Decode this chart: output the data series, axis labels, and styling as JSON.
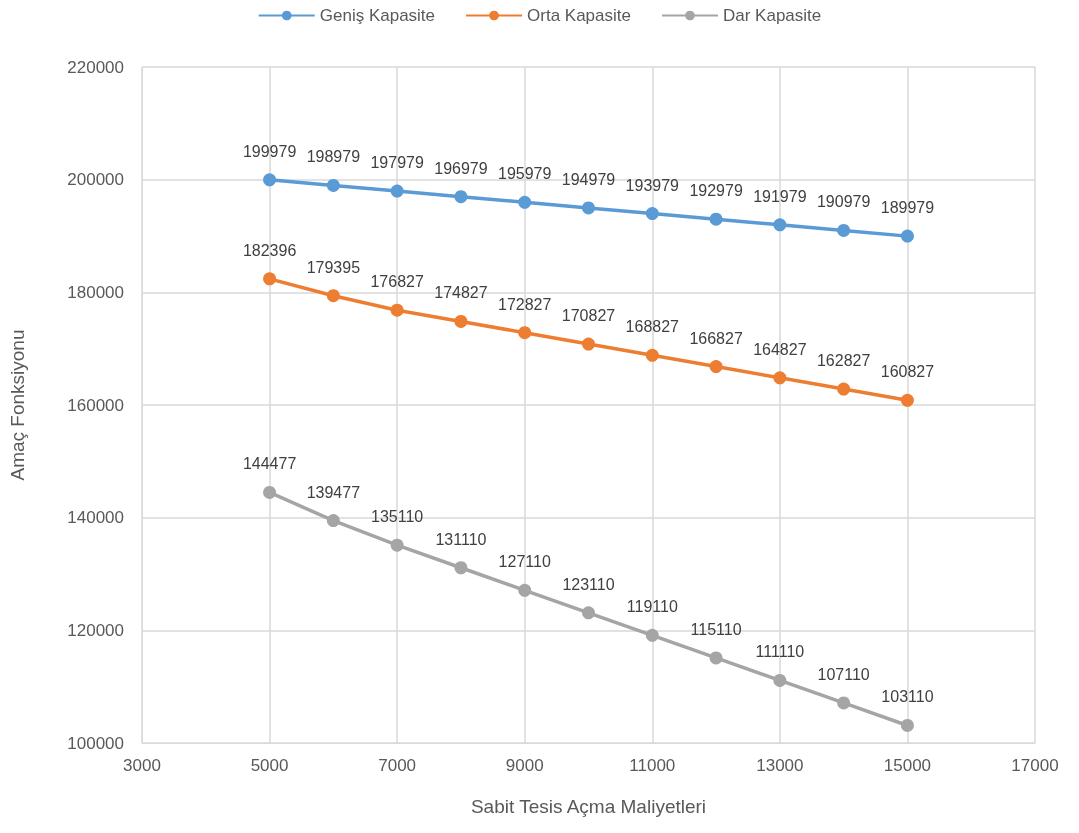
{
  "chart_data": {
    "type": "line",
    "xlabel": "Sabit Tesis Açma Maliyetleri",
    "ylabel": "Amaç Fonksiyonu",
    "x": [
      5000,
      6000,
      7000,
      8000,
      9000,
      10000,
      11000,
      12000,
      13000,
      14000,
      15000
    ],
    "series": [
      {
        "name": "Geniş Kapasite",
        "color": "#5b9bd5",
        "values": [
          199979,
          198979,
          197979,
          196979,
          195979,
          194979,
          193979,
          192979,
          191979,
          190979,
          189979
        ]
      },
      {
        "name": "Orta Kapasite",
        "color": "#ed7d31",
        "values": [
          182396,
          179395,
          176827,
          174827,
          172827,
          170827,
          168827,
          166827,
          164827,
          162827,
          160827
        ]
      },
      {
        "name": "Dar Kapasite",
        "color": "#a5a5a5",
        "values": [
          144477,
          139477,
          135110,
          131110,
          127110,
          123110,
          119110,
          115110,
          111110,
          107110,
          103110
        ]
      }
    ],
    "xlim": [
      3000,
      17000
    ],
    "xticks": [
      3000,
      5000,
      7000,
      9000,
      11000,
      13000,
      15000,
      17000
    ],
    "ylim": [
      100000,
      220000
    ],
    "yticks": [
      100000,
      120000,
      140000,
      160000,
      180000,
      200000,
      220000
    ],
    "grid": true,
    "legend": "top",
    "marker": "circle",
    "line_style": "solid",
    "data_labels": true
  }
}
